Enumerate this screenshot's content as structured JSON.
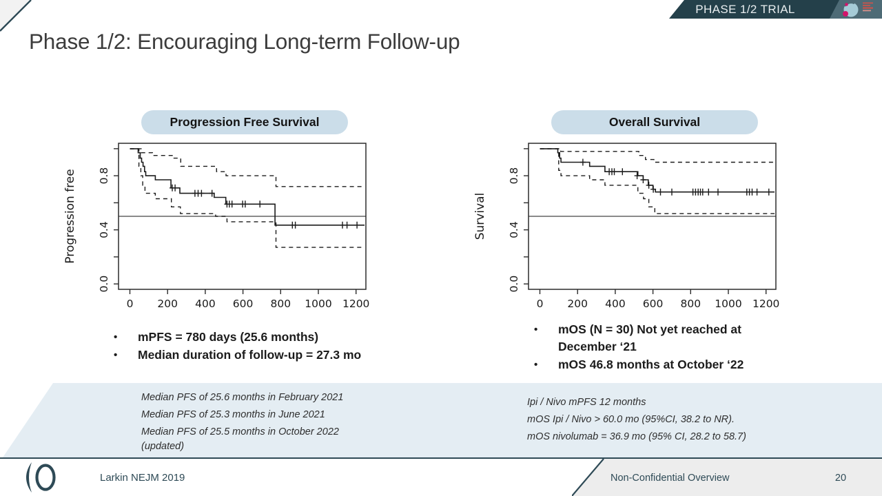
{
  "slide": {
    "title": "Phase 1/2: Encouraging Long-term Follow-up",
    "banner_label": "PHASE 1/2 TRIAL",
    "bullet_char": "•"
  },
  "bullets": {
    "left": [
      "mPFS = 780 days (25.6 months)",
      "Median duration of follow-up = 27.3 mo"
    ],
    "right": [
      "mOS (N = 30) Not yet reached at December ‘21",
      "mOS 46.8 months at October ‘22"
    ]
  },
  "notes": {
    "left": [
      "Median PFS of 25.6 months in February 2021",
      "Median PFS of 25.3 months in June 2021",
      "Median PFS of 25.5 months in October 2022",
      "(updated)"
    ],
    "right": [
      "Ipi / Nivo mPFS 12 months",
      "mOS Ipi / Nivo > 60.0 mo (95%CI, 38.2 to NR).",
      "mOS nivolumab = 36.9 mo (95% CI, 28.2 to 58.7)"
    ]
  },
  "footer": {
    "citation": "Larkin NEJM 2019",
    "classification": "Non-Confidential Overview",
    "page_number": "20"
  },
  "colors": {
    "banner_dark": "#24404A",
    "banner_light_section": "#4E6B76",
    "slate_accent": "#2E4A56",
    "pill_background": "#CBDDE9",
    "notes_band_background": "#E4EDF3",
    "footer_tab_background": "#EDEDED",
    "logo_magenta": "#D2146B",
    "logo_powder_blue": "#A6CBD7"
  },
  "chart_data": [
    {
      "type": "line",
      "subtype": "kaplan_meier_step",
      "title": "Progression Free Survival",
      "xlabel": "",
      "ylabel": "Progression free",
      "xlim": [
        0,
        1250
      ],
      "ylim": [
        0,
        1
      ],
      "grid": false,
      "xticks": [
        0,
        200,
        400,
        600,
        800,
        1000,
        1200
      ],
      "yticks": [
        0,
        0.2,
        0.4,
        0.6,
        0.8,
        1
      ],
      "ytick_labels": [
        "0.0",
        "0.4",
        "0.8"
      ],
      "ytick_label_values": [
        0,
        0.4,
        0.8
      ],
      "reference_line_y": 0.5,
      "median_days": 780,
      "series": [
        {
          "name": "KM estimate",
          "style": "solid",
          "points": [
            [
              0,
              1
            ],
            [
              44,
              0.97
            ],
            [
              55,
              0.93
            ],
            [
              62,
              0.9
            ],
            [
              70,
              0.87
            ],
            [
              78,
              0.83
            ],
            [
              84,
              0.8
            ],
            [
              135,
              0.77
            ],
            [
              218,
              0.71
            ],
            [
              265,
              0.67
            ],
            [
              447,
              0.64
            ],
            [
              509,
              0.59
            ],
            [
              770,
              0.435
            ],
            [
              1245,
              0.435
            ]
          ]
        },
        {
          "name": "Upper 95% CI",
          "style": "dashed",
          "points": [
            [
              0,
              1
            ],
            [
              60,
              0.97
            ],
            [
              120,
              0.95
            ],
            [
              230,
              0.93
            ],
            [
              270,
              0.87
            ],
            [
              460,
              0.83
            ],
            [
              510,
              0.8
            ],
            [
              775,
              0.72
            ],
            [
              1245,
              0.72
            ]
          ]
        },
        {
          "name": "Lower 95% CI",
          "style": "dashed",
          "points": [
            [
              0,
              1
            ],
            [
              48,
              0.87
            ],
            [
              58,
              0.8
            ],
            [
              68,
              0.73
            ],
            [
              80,
              0.67
            ],
            [
              135,
              0.63
            ],
            [
              220,
              0.57
            ],
            [
              268,
              0.52
            ],
            [
              455,
              0.5
            ],
            [
              515,
              0.46
            ],
            [
              775,
              0.27
            ],
            [
              1245,
              0.27
            ]
          ]
        }
      ],
      "censor_marks": [
        [
          225,
          0.71
        ],
        [
          240,
          0.71
        ],
        [
          345,
          0.67
        ],
        [
          362,
          0.67
        ],
        [
          380,
          0.67
        ],
        [
          436,
          0.67
        ],
        [
          515,
          0.59
        ],
        [
          528,
          0.59
        ],
        [
          542,
          0.59
        ],
        [
          598,
          0.59
        ],
        [
          612,
          0.59
        ],
        [
          690,
          0.59
        ],
        [
          862,
          0.435
        ],
        [
          878,
          0.435
        ],
        [
          1128,
          0.435
        ],
        [
          1152,
          0.435
        ],
        [
          1205,
          0.435
        ]
      ]
    },
    {
      "type": "line",
      "subtype": "kaplan_meier_step",
      "title": "Overall Survival",
      "xlabel": "",
      "ylabel": "Survival",
      "xlim": [
        0,
        1250
      ],
      "ylim": [
        0,
        1
      ],
      "grid": false,
      "xticks": [
        0,
        200,
        400,
        600,
        800,
        1000,
        1200
      ],
      "yticks": [
        0,
        0.2,
        0.4,
        0.6,
        0.8,
        1
      ],
      "ytick_labels": [
        "0.0",
        "0.4",
        "0.8"
      ],
      "ytick_label_values": [
        0,
        0.4,
        0.8
      ],
      "reference_line_y": 0.5,
      "series": [
        {
          "name": "KM estimate",
          "style": "solid",
          "points": [
            [
              0,
              1
            ],
            [
              95,
              0.97
            ],
            [
              105,
              0.93
            ],
            [
              112,
              0.9
            ],
            [
              264,
              0.87
            ],
            [
              345,
              0.83
            ],
            [
              520,
              0.8
            ],
            [
              548,
              0.77
            ],
            [
              575,
              0.73
            ],
            [
              600,
              0.7
            ],
            [
              613,
              0.68
            ],
            [
              1245,
              0.68
            ]
          ]
        },
        {
          "name": "Upper 95% CI",
          "style": "dashed",
          "points": [
            [
              0,
              1
            ],
            [
              110,
              0.98
            ],
            [
              525,
              0.95
            ],
            [
              560,
              0.92
            ],
            [
              605,
              0.9
            ],
            [
              1245,
              0.9
            ]
          ]
        },
        {
          "name": "Lower 95% CI",
          "style": "dashed",
          "points": [
            [
              0,
              1
            ],
            [
              100,
              0.84
            ],
            [
              112,
              0.8
            ],
            [
              264,
              0.77
            ],
            [
              345,
              0.73
            ],
            [
              520,
              0.67
            ],
            [
              550,
              0.63
            ],
            [
              578,
              0.57
            ],
            [
              610,
              0.52
            ],
            [
              1245,
              0.52
            ]
          ]
        }
      ],
      "censor_marks": [
        [
          228,
          0.9
        ],
        [
          368,
          0.83
        ],
        [
          382,
          0.83
        ],
        [
          395,
          0.83
        ],
        [
          438,
          0.83
        ],
        [
          516,
          0.8
        ],
        [
          548,
          0.77
        ],
        [
          578,
          0.73
        ],
        [
          602,
          0.7
        ],
        [
          640,
          0.68
        ],
        [
          700,
          0.68
        ],
        [
          812,
          0.68
        ],
        [
          826,
          0.68
        ],
        [
          840,
          0.68
        ],
        [
          852,
          0.68
        ],
        [
          864,
          0.68
        ],
        [
          895,
          0.68
        ],
        [
          945,
          0.68
        ],
        [
          1098,
          0.68
        ],
        [
          1112,
          0.68
        ],
        [
          1126,
          0.68
        ],
        [
          1152,
          0.68
        ],
        [
          1215,
          0.68
        ]
      ]
    }
  ]
}
